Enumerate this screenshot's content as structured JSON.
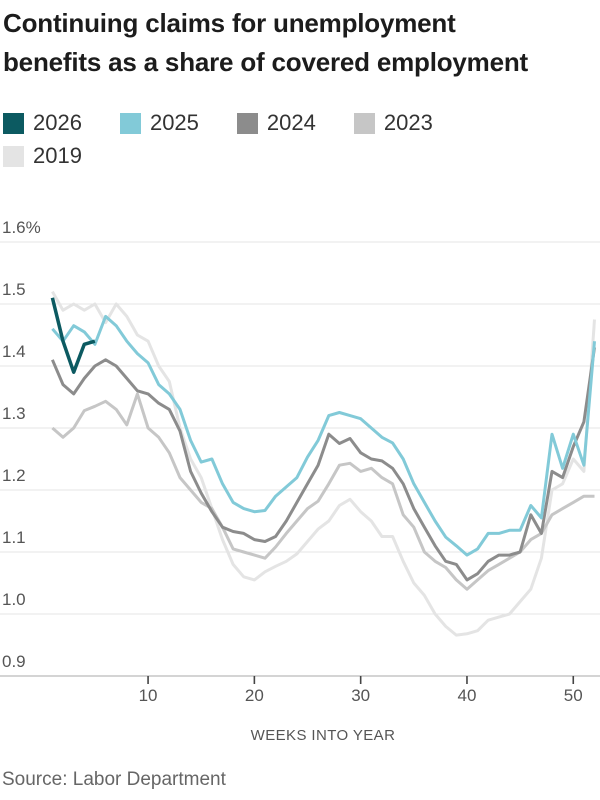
{
  "title": {
    "lines": [
      "Continuing claims for unemployment",
      "benefits as a share of covered employment"
    ]
  },
  "source": "Source: Labor Department",
  "colors": {
    "grid": "#e4e4e4",
    "axis_line": "#a8a8a8",
    "tick": "#444444",
    "series_2026": "#0c5a61",
    "series_2025": "#82cad8",
    "series_2024": "#8c8c8c",
    "series_2023": "#c6c6c6",
    "series_2019": "#e4e4e4"
  },
  "chart_data": {
    "type": "line",
    "title": "Continuing claims for unemployment benefits as a share of covered employment",
    "xlabel": "WEEKS INTO YEAR",
    "ylabel": "",
    "y_unit": "%",
    "ylim": [
      0.9,
      1.6
    ],
    "xlim": [
      1,
      52
    ],
    "grid": true,
    "legend_position": "top",
    "yticks": [
      {
        "label": "1.6%",
        "value": 1.6
      },
      {
        "label": "1.5",
        "value": 1.5
      },
      {
        "label": "1.4",
        "value": 1.4
      },
      {
        "label": "1.3",
        "value": 1.3
      },
      {
        "label": "1.2",
        "value": 1.2
      },
      {
        "label": "1.1",
        "value": 1.1
      },
      {
        "label": "1.0",
        "value": 1.0
      },
      {
        "label": "0.9",
        "value": 0.9
      }
    ],
    "xticks": [
      {
        "label": "10",
        "value": 10
      },
      {
        "label": "20",
        "value": 20
      },
      {
        "label": "30",
        "value": 30
      },
      {
        "label": "40",
        "value": 40
      },
      {
        "label": "50",
        "value": 50
      }
    ],
    "x_start_week": 1,
    "x_step_weeks": 1,
    "series": [
      {
        "name": "2026",
        "color": "#0c5a61",
        "stroke_width": 3.5,
        "values": [
          1.51,
          1.44,
          1.39,
          1.435,
          1.44
        ]
      },
      {
        "name": "2025",
        "color": "#82cad8",
        "stroke_width": 3,
        "values": [
          1.46,
          1.44,
          1.465,
          1.455,
          1.435,
          1.48,
          1.465,
          1.44,
          1.42,
          1.405,
          1.37,
          1.355,
          1.33,
          1.28,
          1.245,
          1.25,
          1.21,
          1.18,
          1.17,
          1.165,
          1.167,
          1.19,
          1.205,
          1.22,
          1.253,
          1.28,
          1.32,
          1.325,
          1.32,
          1.315,
          1.3,
          1.285,
          1.276,
          1.25,
          1.21,
          1.18,
          1.15,
          1.124,
          1.11,
          1.095,
          1.105,
          1.13,
          1.13,
          1.135,
          1.135,
          1.175,
          1.155,
          1.29,
          1.235,
          1.29,
          1.24,
          1.44
        ]
      },
      {
        "name": "2024",
        "color": "#8c8c8c",
        "stroke_width": 3,
        "values": [
          1.41,
          1.37,
          1.355,
          1.38,
          1.4,
          1.41,
          1.4,
          1.38,
          1.36,
          1.355,
          1.34,
          1.33,
          1.295,
          1.23,
          1.195,
          1.165,
          1.14,
          1.133,
          1.13,
          1.12,
          1.117,
          1.125,
          1.15,
          1.18,
          1.21,
          1.24,
          1.29,
          1.275,
          1.283,
          1.26,
          1.25,
          1.247,
          1.235,
          1.21,
          1.17,
          1.14,
          1.11,
          1.085,
          1.08,
          1.055,
          1.065,
          1.085,
          1.095,
          1.095,
          1.1,
          1.16,
          1.13,
          1.23,
          1.22,
          1.27,
          1.31,
          1.43
        ]
      },
      {
        "name": "2023",
        "color": "#c6c6c6",
        "stroke_width": 3,
        "values": [
          1.3,
          1.285,
          1.3,
          1.328,
          1.335,
          1.343,
          1.33,
          1.305,
          1.355,
          1.3,
          1.285,
          1.26,
          1.22,
          1.2,
          1.18,
          1.17,
          1.14,
          1.105,
          1.1,
          1.095,
          1.09,
          1.108,
          1.13,
          1.15,
          1.17,
          1.182,
          1.21,
          1.24,
          1.243,
          1.23,
          1.235,
          1.22,
          1.21,
          1.16,
          1.14,
          1.1,
          1.085,
          1.075,
          1.055,
          1.04,
          1.055,
          1.07,
          1.08,
          1.09,
          1.1,
          1.12,
          1.13,
          1.16,
          1.17,
          1.18,
          1.19,
          1.19
        ]
      },
      {
        "name": "2019",
        "color": "#e4e4e4",
        "stroke_width": 3,
        "values": [
          1.52,
          1.49,
          1.5,
          1.49,
          1.5,
          1.47,
          1.5,
          1.48,
          1.45,
          1.44,
          1.4,
          1.375,
          1.3,
          1.25,
          1.22,
          1.17,
          1.12,
          1.08,
          1.06,
          1.055,
          1.068,
          1.077,
          1.085,
          1.097,
          1.117,
          1.137,
          1.15,
          1.175,
          1.185,
          1.165,
          1.15,
          1.125,
          1.125,
          1.085,
          1.05,
          1.03,
          1.0,
          0.98,
          0.966,
          0.968,
          0.973,
          0.99,
          0.995,
          1.0,
          1.02,
          1.04,
          1.09,
          1.2,
          1.21,
          1.25,
          1.23,
          1.475
        ]
      }
    ]
  }
}
